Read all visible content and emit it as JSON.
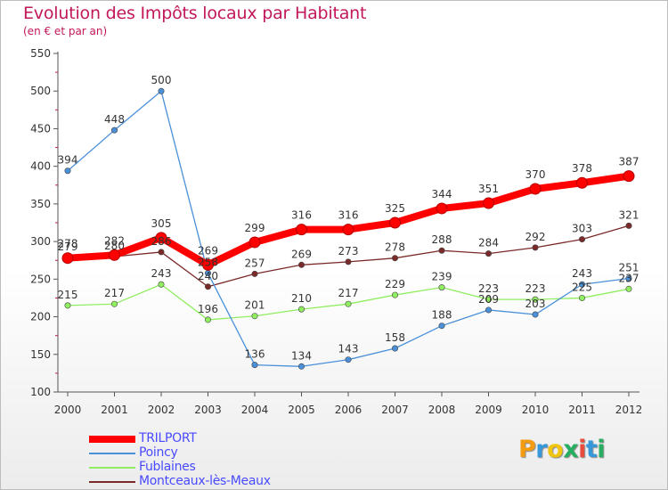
{
  "header": {
    "title": "Evolution des Impôts locaux par Habitant",
    "subtitle": "(en € et par an)"
  },
  "logo": {
    "text": "Proxiti",
    "colors": [
      "#f39c12",
      "#3498db",
      "#f1c40f",
      "#27ae60",
      "#e74c3c",
      "#3498db",
      "#27ae60"
    ]
  },
  "chart_data": {
    "type": "line",
    "x": [
      "2000",
      "2001",
      "2002",
      "2003",
      "2004",
      "2005",
      "2006",
      "2007",
      "2008",
      "2009",
      "2010",
      "2011",
      "2012"
    ],
    "ylim": [
      100,
      550
    ],
    "yticks": [
      100,
      150,
      200,
      250,
      300,
      350,
      400,
      450,
      500,
      550
    ],
    "grid": false,
    "legend_position": "bottom-left",
    "series": [
      {
        "name": "TRILPORT",
        "color": "#ff0000",
        "values": [
          278,
          282,
          305,
          269,
          299,
          316,
          316,
          325,
          344,
          351,
          370,
          378,
          387
        ]
      },
      {
        "name": "Poincy",
        "color": "#4a90d9",
        "values": [
          394,
          448,
          500,
          258,
          136,
          134,
          143,
          158,
          188,
          209,
          203,
          243,
          251
        ]
      },
      {
        "name": "Fublaines",
        "color": "#90ee60",
        "values": [
          215,
          217,
          243,
          196,
          201,
          210,
          217,
          229,
          239,
          223,
          223,
          225,
          237
        ]
      },
      {
        "name": "Montceaux-lès-Meaux",
        "color": "#7b2a2a",
        "values": [
          279,
          280,
          286,
          240,
          257,
          269,
          273,
          278,
          288,
          284,
          292,
          303,
          321
        ]
      }
    ]
  }
}
